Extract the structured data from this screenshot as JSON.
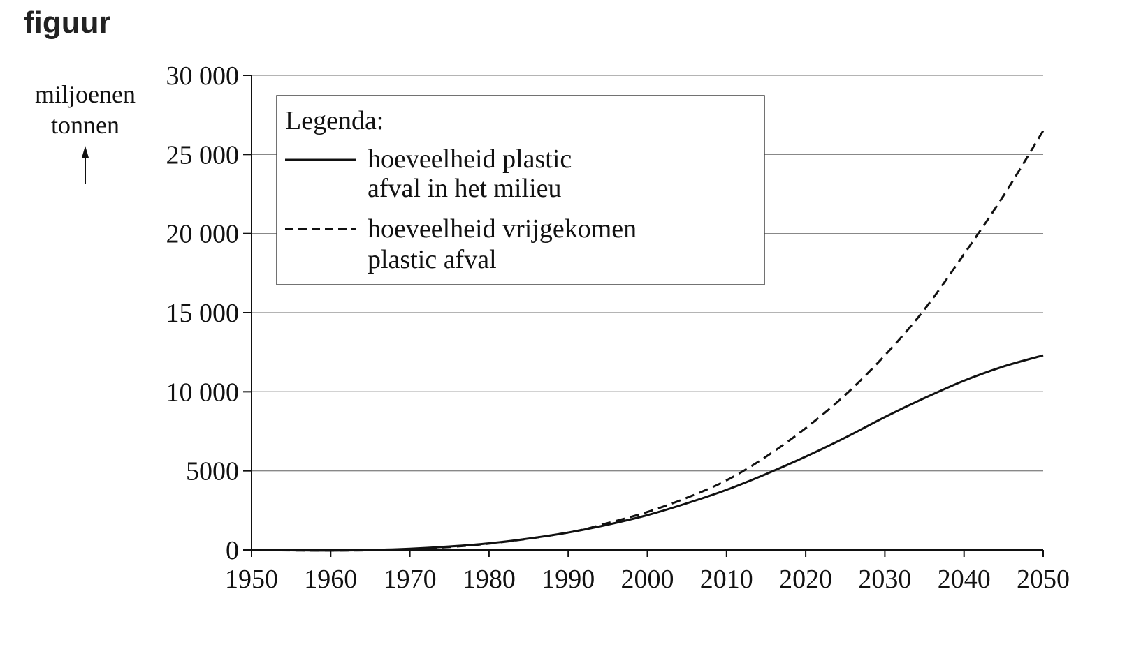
{
  "figure_label": "figuur",
  "chart_data": {
    "type": "line",
    "ylabel_line1": "miljoenen",
    "ylabel_line2": "tonnen",
    "xlim": [
      1950,
      2050
    ],
    "ylim": [
      0,
      30000
    ],
    "xticks": [
      "1950",
      "1960",
      "1970",
      "1980",
      "1990",
      "2000",
      "2010",
      "2020",
      "2030",
      "2040",
      "2050"
    ],
    "yticks": [
      {
        "value": 0,
        "label": "0"
      },
      {
        "value": 5000,
        "label": "5000"
      },
      {
        "value": 10000,
        "label": "10 000"
      },
      {
        "value": 15000,
        "label": "15 000"
      },
      {
        "value": 20000,
        "label": "20 000"
      },
      {
        "value": 25000,
        "label": "25 000"
      },
      {
        "value": 30000,
        "label": "30 000"
      }
    ],
    "grid": true,
    "legend": {
      "title": "Legenda:",
      "placement": "top-left",
      "entries": [
        {
          "line1": "hoeveelheid plastic",
          "line2": "afval in het milieu",
          "style": "solid"
        },
        {
          "line1": "hoeveelheid vrijgekomen",
          "line2": "plastic afval",
          "style": "dashed"
        }
      ]
    },
    "series": [
      {
        "name": "hoeveelheid plastic afval in het milieu",
        "style": "solid",
        "x": [
          1950,
          1955,
          1960,
          1965,
          1970,
          1975,
          1980,
          1985,
          1990,
          1995,
          2000,
          2005,
          2010,
          2015,
          2020,
          2025,
          2030,
          2035,
          2040,
          2045,
          2050
        ],
        "y": [
          0,
          -20,
          -40,
          0,
          80,
          220,
          420,
          720,
          1100,
          1600,
          2200,
          2950,
          3800,
          4800,
          5900,
          7100,
          8400,
          9600,
          10700,
          11600,
          12300
        ]
      },
      {
        "name": "hoeveelheid vrijgekomen plastic afval",
        "style": "dashed",
        "x": [
          1950,
          1960,
          1970,
          1980,
          1990,
          1995,
          2000,
          2005,
          2010,
          2015,
          2020,
          2025,
          2030,
          2035,
          2040,
          2045,
          2050
        ],
        "y": [
          0,
          -40,
          50,
          400,
          1100,
          1700,
          2400,
          3300,
          4400,
          5900,
          7700,
          9800,
          12300,
          15200,
          18700,
          22400,
          26500
        ]
      }
    ],
    "colors": {
      "lines": "#111111",
      "grid": "#888888"
    }
  }
}
